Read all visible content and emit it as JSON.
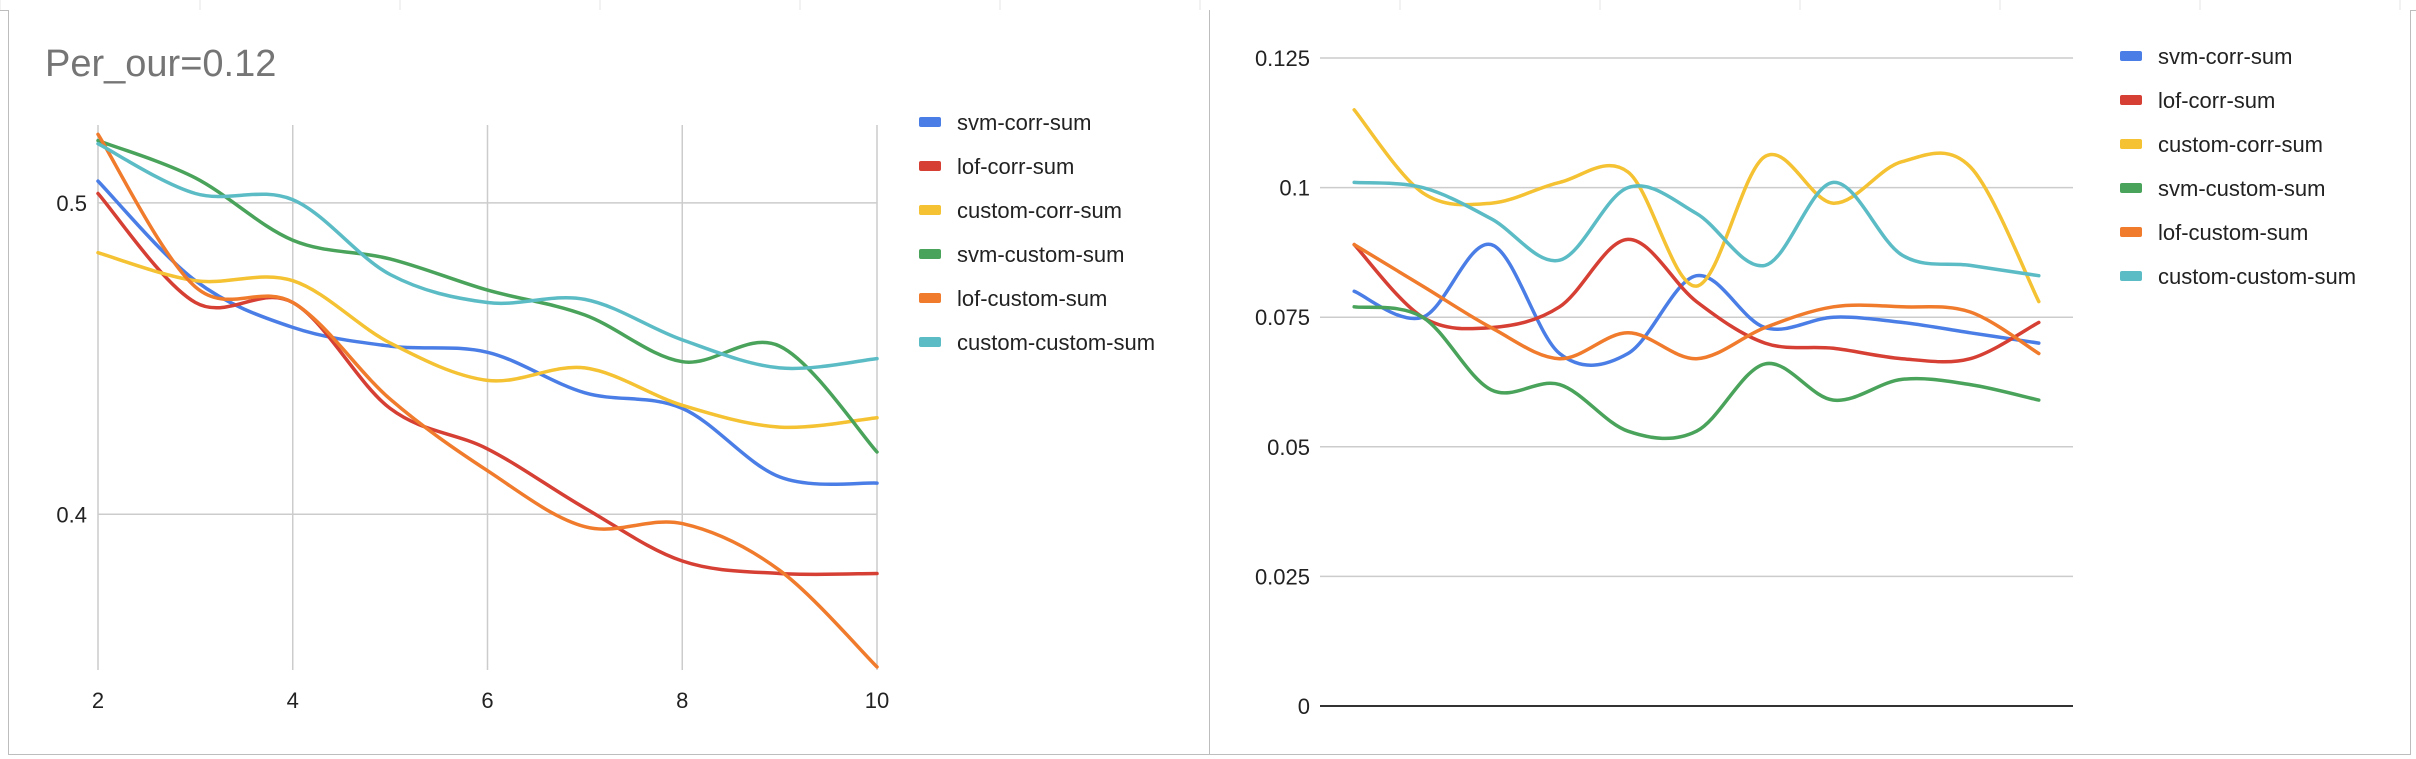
{
  "chart_data": [
    {
      "type": "line",
      "title": "Per_our=0.12",
      "xlabel": "",
      "ylabel": "",
      "x": [
        2,
        3,
        4,
        5,
        6,
        7,
        8,
        9,
        10
      ],
      "xticks": [
        "2",
        "4",
        "6",
        "8",
        "10"
      ],
      "xtick_values": [
        2,
        4,
        6,
        8,
        10
      ],
      "ytick_values": [
        0.4,
        0.5
      ],
      "yticks": [
        "0.4",
        "0.5"
      ],
      "xlim": [
        2,
        10
      ],
      "ylim": [
        0.35,
        0.525
      ],
      "grid": true,
      "legend": "right",
      "series": [
        {
          "name": "svm-corr-sum",
          "color": "#4a7ee6",
          "values": [
            0.507,
            0.475,
            0.46,
            0.454,
            0.452,
            0.439,
            0.434,
            0.412,
            0.41
          ]
        },
        {
          "name": "lof-corr-sum",
          "color": "#d63f33",
          "values": [
            0.503,
            0.468,
            0.468,
            0.434,
            0.421,
            0.402,
            0.385,
            0.381,
            0.381
          ]
        },
        {
          "name": "custom-corr-sum",
          "color": "#f4c232",
          "values": [
            0.484,
            0.475,
            0.475,
            0.455,
            0.443,
            0.447,
            0.435,
            0.428,
            0.431
          ]
        },
        {
          "name": "svm-custom-sum",
          "color": "#4aa35a",
          "values": [
            0.52,
            0.508,
            0.488,
            0.482,
            0.472,
            0.464,
            0.449,
            0.454,
            0.42
          ]
        },
        {
          "name": "lof-custom-sum",
          "color": "#f07b2c",
          "values": [
            0.522,
            0.473,
            0.468,
            0.437,
            0.414,
            0.396,
            0.397,
            0.382,
            0.351
          ]
        },
        {
          "name": "custom-custom-sum",
          "color": "#5bbcc6",
          "values": [
            0.519,
            0.503,
            0.501,
            0.477,
            0.468,
            0.469,
            0.456,
            0.447,
            0.45
          ]
        }
      ]
    },
    {
      "type": "line",
      "title": "",
      "xlabel": "",
      "ylabel": "",
      "x": [
        1,
        2,
        3,
        4,
        5,
        6,
        7,
        8,
        9,
        10,
        11
      ],
      "xticks": [],
      "ytick_values": [
        0,
        0.025,
        0.05,
        0.075,
        0.1,
        0.125
      ],
      "yticks": [
        "0",
        "0.025",
        "0.05",
        "0.075",
        "0.1",
        "0.125"
      ],
      "xlim": [
        0.5,
        11.5
      ],
      "ylim": [
        0,
        0.125
      ],
      "grid": true,
      "legend": "right",
      "series": [
        {
          "name": "svm-corr-sum",
          "color": "#4a7ee6",
          "values": [
            0.08,
            0.075,
            0.089,
            0.068,
            0.068,
            0.083,
            0.073,
            0.075,
            0.074,
            0.072,
            0.07
          ]
        },
        {
          "name": "lof-corr-sum",
          "color": "#d63f33",
          "values": [
            0.089,
            0.075,
            0.073,
            0.077,
            0.09,
            0.078,
            0.07,
            0.069,
            0.067,
            0.067,
            0.074
          ]
        },
        {
          "name": "custom-corr-sum",
          "color": "#f4c232",
          "values": [
            0.115,
            0.099,
            0.097,
            0.101,
            0.103,
            0.081,
            0.106,
            0.097,
            0.105,
            0.104,
            0.078
          ]
        },
        {
          "name": "svm-custom-sum",
          "color": "#4aa35a",
          "values": [
            0.077,
            0.075,
            0.061,
            0.062,
            0.053,
            0.053,
            0.066,
            0.059,
            0.063,
            0.062,
            0.059
          ]
        },
        {
          "name": "lof-custom-sum",
          "color": "#f07b2c",
          "values": [
            0.089,
            0.081,
            0.073,
            0.067,
            0.072,
            0.067,
            0.073,
            0.077,
            0.077,
            0.076,
            0.068
          ]
        },
        {
          "name": "custom-custom-sum",
          "color": "#5bbcc6",
          "values": [
            0.101,
            0.1,
            0.094,
            0.086,
            0.1,
            0.095,
            0.085,
            0.101,
            0.087,
            0.085,
            0.083
          ]
        }
      ]
    }
  ]
}
